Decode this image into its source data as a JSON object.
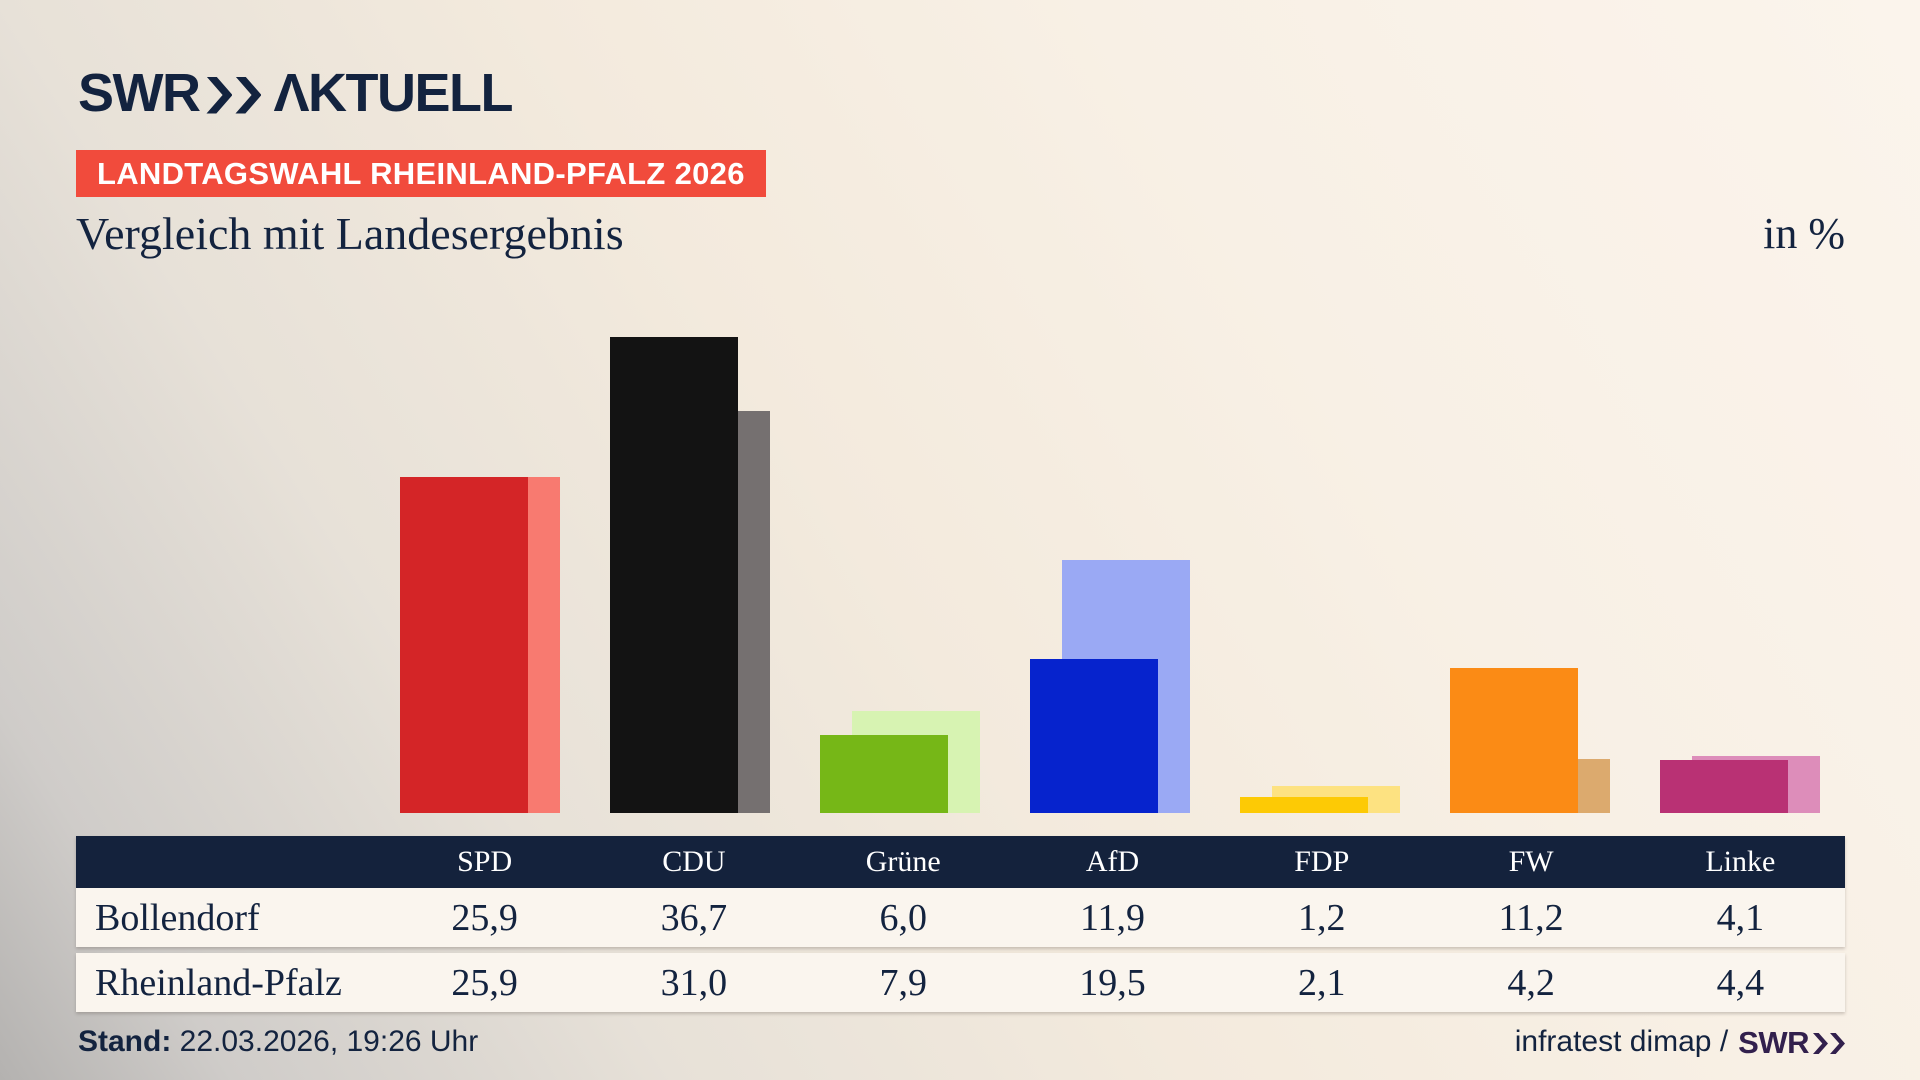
{
  "brand": {
    "swr_wordmark": "SWR",
    "aktuell_wordmark": "ΛKTUELL",
    "badge": "LANDTAGSWAHL RHEINLAND-PFALZ 2026"
  },
  "header": {
    "title": "Vergleich mit Landesergebnis",
    "unit_label": "in %"
  },
  "chart_data": {
    "type": "bar",
    "title": "Vergleich mit Landesergebnis",
    "unit": "in %",
    "categories": [
      "SPD",
      "CDU",
      "Grüne",
      "AfD",
      "FDP",
      "FW",
      "Linke"
    ],
    "series": [
      {
        "name": "Bollendorf",
        "role": "front",
        "values": [
          25.9,
          36.7,
          6.0,
          11.9,
          1.2,
          11.2,
          4.1
        ]
      },
      {
        "name": "Rheinland-Pfalz",
        "role": "back",
        "values": [
          25.9,
          31.0,
          7.9,
          19.5,
          2.1,
          4.2,
          4.4
        ]
      }
    ],
    "colors": {
      "front": [
        "#d42527",
        "#131313",
        "#76b717",
        "#0623cd",
        "#fdca05",
        "#fb8b15",
        "#b93174"
      ],
      "back": [
        "#f87a70",
        "#757070",
        "#d7f3b2",
        "#9aa9f4",
        "#fde281",
        "#dcaa6e",
        "#dd8dba"
      ]
    },
    "ylim": [
      0,
      39
    ],
    "grid": false,
    "legend_position": "table-below"
  },
  "table": {
    "columns": [
      "SPD",
      "CDU",
      "Grüne",
      "AfD",
      "FDP",
      "FW",
      "Linke"
    ],
    "rows": [
      {
        "label": "Bollendorf",
        "values": [
          "25,9",
          "36,7",
          "6,0",
          "11,9",
          "1,2",
          "11,2",
          "4,1"
        ]
      },
      {
        "label": "Rheinland-Pfalz",
        "values": [
          "25,9",
          "31,0",
          "7,9",
          "19,5",
          "2,1",
          "4,2",
          "4,4"
        ]
      }
    ]
  },
  "footer": {
    "stand_label": "Stand:",
    "stand_value": "22.03.2026, 19:26 Uhr",
    "source_text": "infratest dimap /",
    "source_brand": "SWR"
  },
  "colors": {
    "accent_red": "#f14b3c",
    "navy": "#13233f",
    "table_header_bg": "#14223c",
    "row_bg": "#faf5ee",
    "brand_purple": "#32204d"
  }
}
